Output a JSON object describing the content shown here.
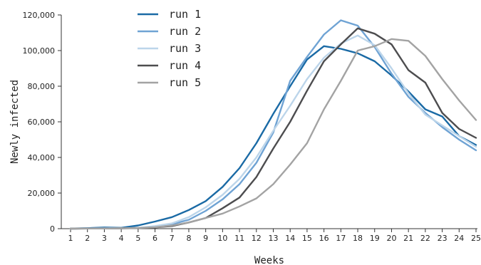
{
  "chart_data": {
    "type": "line",
    "title": "",
    "xlabel": "Weeks",
    "ylabel": "Newly infected",
    "x": [
      1,
      2,
      3,
      4,
      5,
      6,
      7,
      8,
      9,
      10,
      11,
      12,
      13,
      14,
      15,
      16,
      17,
      18,
      19,
      20,
      21,
      22,
      23,
      24,
      25
    ],
    "ylim": [
      0,
      120000
    ],
    "yticks": [
      0,
      20000,
      40000,
      60000,
      80000,
      100000,
      120000
    ],
    "ytick_labels": [
      "0",
      "20,000",
      "40,000",
      "60,000",
      "80,000",
      "100,000",
      "120,000"
    ],
    "grid": false,
    "legend_position": "top-left",
    "series": [
      {
        "name": "run 1",
        "color": "#1a6aa5",
        "values": [
          100,
          300,
          700,
          500,
          1800,
          4000,
          6500,
          10500,
          15500,
          23500,
          34000,
          48000,
          64500,
          80000,
          95000,
          102500,
          101000,
          98500,
          94000,
          86000,
          77000,
          67000,
          63000,
          52000,
          47000
        ]
      },
      {
        "name": "run 2",
        "color": "#6fa3d4",
        "values": [
          0,
          200,
          300,
          200,
          500,
          1000,
          2500,
          5000,
          10000,
          16500,
          25000,
          37000,
          54000,
          83000,
          96500,
          109000,
          117000,
          114000,
          102000,
          87000,
          74000,
          65000,
          57000,
          50000,
          44000
        ]
      },
      {
        "name": "run 3",
        "color": "#bcd5ea",
        "values": [
          0,
          100,
          200,
          300,
          400,
          1500,
          3000,
          6500,
          12000,
          19000,
          28000,
          40000,
          55000,
          69000,
          84000,
          96000,
          104000,
          108500,
          103000,
          90000,
          76000,
          64000,
          58000,
          52000,
          46000
        ]
      },
      {
        "name": "run 4",
        "color": "#4d4d4f",
        "values": [
          0,
          100,
          100,
          200,
          300,
          700,
          1500,
          3500,
          6000,
          11500,
          17500,
          29000,
          45000,
          60000,
          77500,
          94000,
          103500,
          112500,
          109500,
          103500,
          89000,
          82000,
          65000,
          56000,
          51000
        ]
      },
      {
        "name": "run 5",
        "color": "#a3a3a3",
        "values": [
          0,
          100,
          100,
          200,
          400,
          800,
          1800,
          3500,
          6000,
          8500,
          12500,
          17000,
          25000,
          36000,
          48000,
          67000,
          83000,
          100000,
          102500,
          106500,
          105500,
          97000,
          84000,
          72000,
          61000
        ]
      }
    ]
  }
}
